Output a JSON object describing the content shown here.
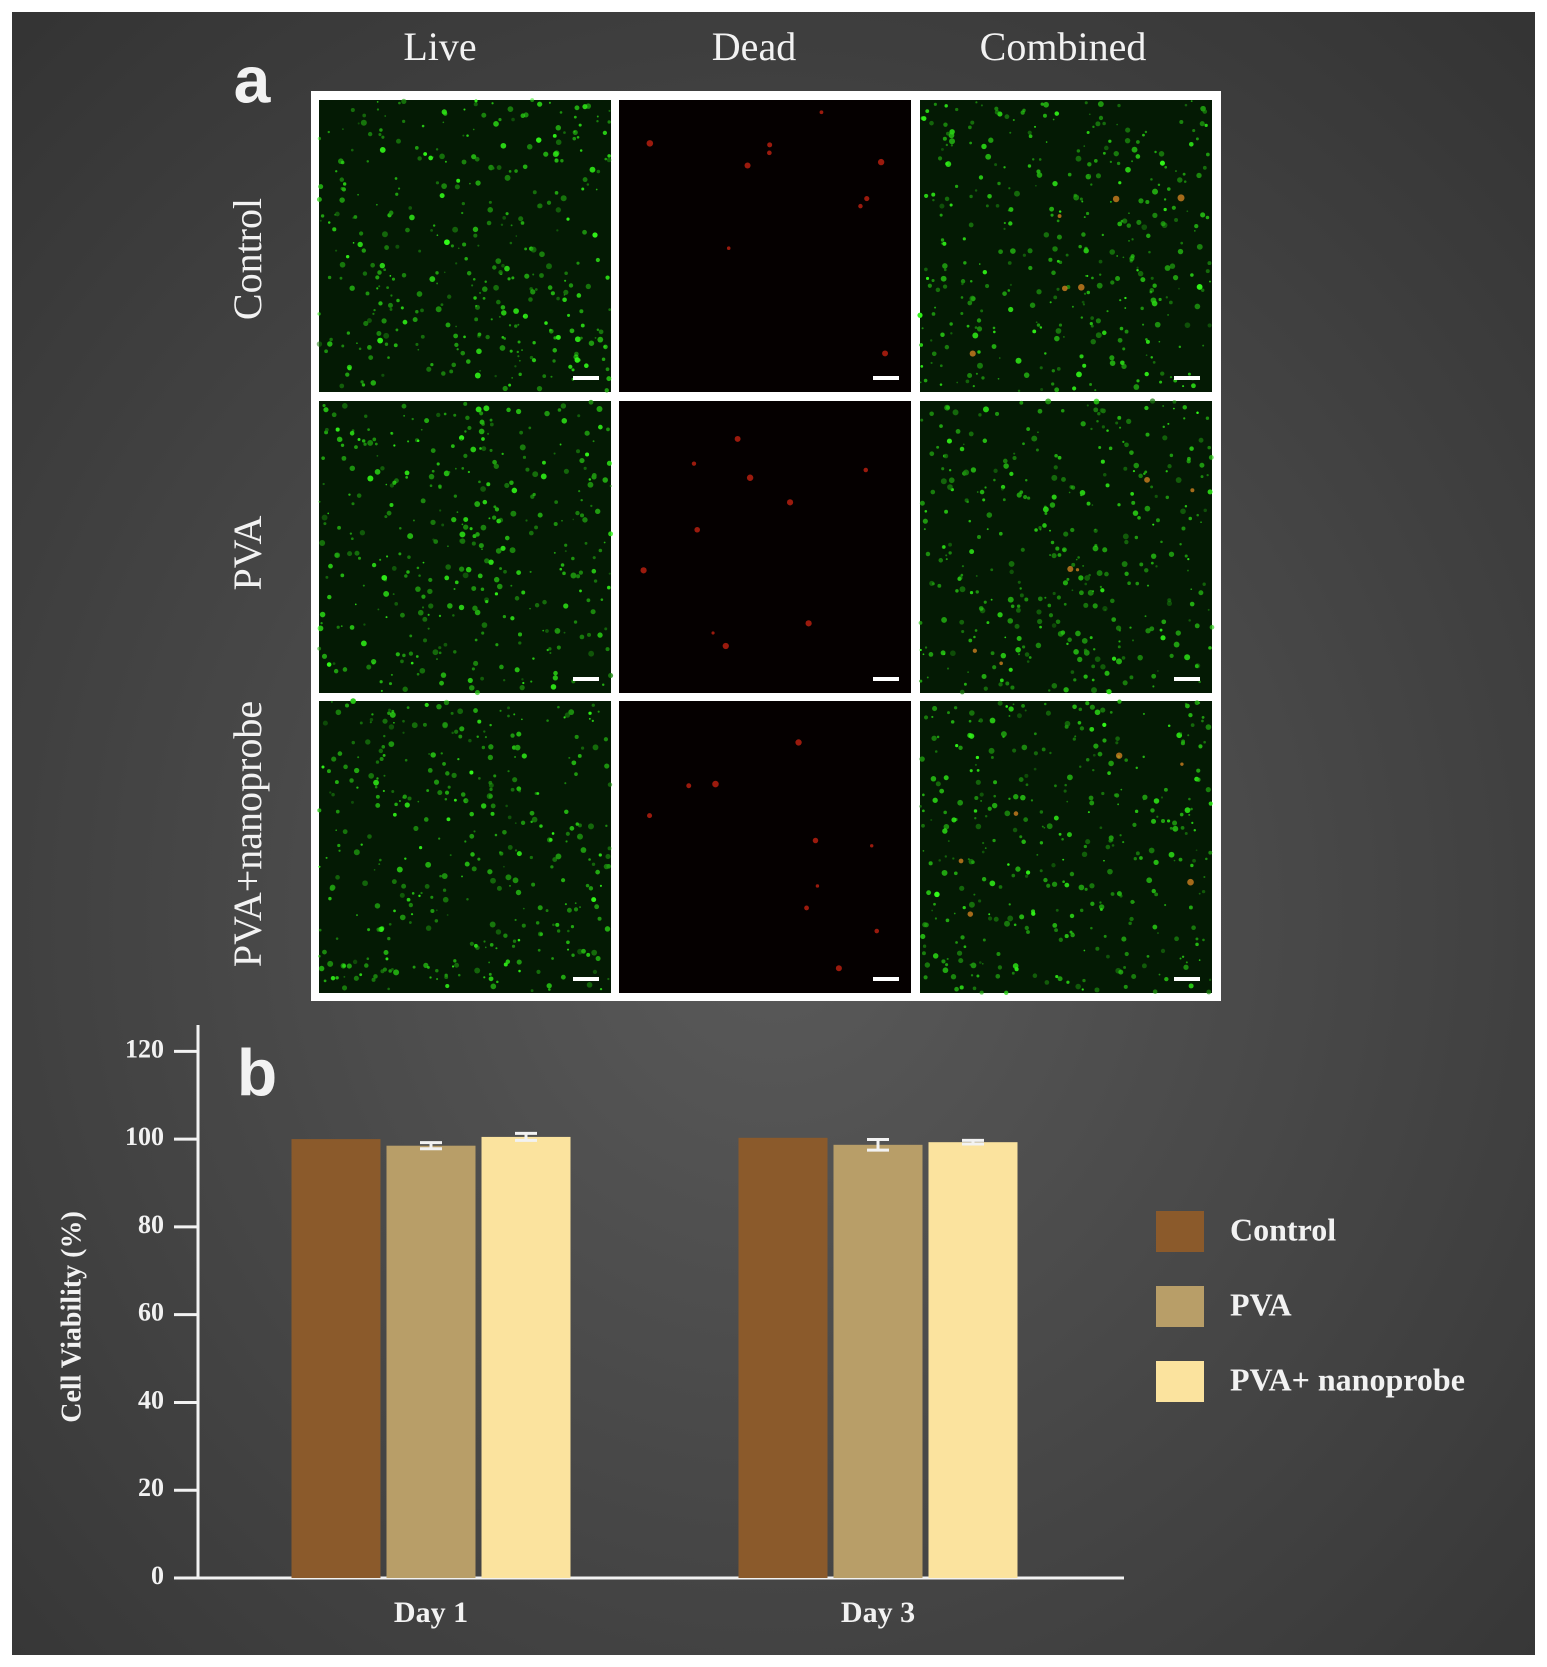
{
  "panel_a": {
    "label": "a",
    "columns": [
      "Live",
      "Dead",
      "Combined"
    ],
    "rows": [
      "Control",
      "PVA",
      "PVA+nanoprobe"
    ]
  },
  "chart_data": {
    "type": "bar",
    "panel_label": "b",
    "ylabel": "Cell Viability (%)",
    "categories": [
      "Day 1",
      "Day 3"
    ],
    "series": [
      {
        "name": "Control",
        "color": "#8b5a2b",
        "values": [
          100,
          100.3
        ],
        "errors": [
          null,
          null
        ]
      },
      {
        "name": "PVA",
        "color": "#b89e68",
        "values": [
          98.5,
          98.7
        ],
        "errors": [
          0.7,
          1.2
        ]
      },
      {
        "name": "PVA+ nanoprobe",
        "color": "#fbe39e",
        "values": [
          100.5,
          99.3
        ],
        "errors": [
          0.8,
          0.4
        ]
      }
    ],
    "ylim": [
      0,
      126
    ],
    "yticks": [
      0,
      20,
      40,
      60,
      80,
      100,
      120
    ],
    "legend": "right"
  }
}
